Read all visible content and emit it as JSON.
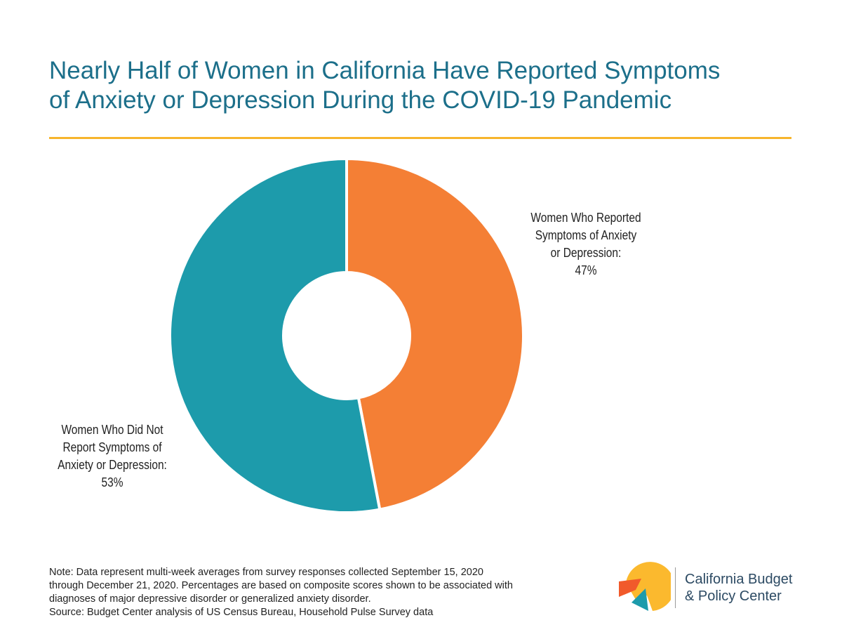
{
  "title_lines": [
    "Nearly Half of Women in California Have Reported Symptoms",
    "of Anxiety or Depression During the COVID-19 Pandemic"
  ],
  "colors": {
    "title": "#1c6f8a",
    "accent_rule": "#f7b52c",
    "reported": "#f47f35",
    "not_reported": "#1d9bab",
    "logo_yellow": "#fbb92e",
    "logo_orange": "#f15a2b",
    "logo_teal": "#1d9bab",
    "logo_text": "#2c4a63"
  },
  "chart_data": {
    "type": "pie",
    "style": "donut",
    "slices": [
      {
        "label_lines": [
          "Women Who Reported",
          "Symptoms of Anxiety",
          "or Depression:",
          "47%"
        ],
        "value": 47,
        "color": "#f47f35"
      },
      {
        "label_lines": [
          "Women Who Did Not",
          "Report Symptoms of",
          "Anxiety or Depression:",
          "53%"
        ],
        "value": 53,
        "color": "#1d9bab"
      }
    ],
    "start_angle": "12 o'clock",
    "direction": "clockwise"
  },
  "note_lines": [
    "Note: Data represent multi-week averages from survey responses collected September 15, 2020",
    "through December 21, 2020. Percentages are based on composite scores shown to be associated with",
    "diagnoses of major depressive disorder or generalized anxiety disorder.",
    "Source: Budget Center analysis of US Census Bureau, Household Pulse Survey data"
  ],
  "logo": {
    "name_lines": [
      "California Budget",
      "& Policy Center"
    ],
    "icon": "budget-center-logo-icon"
  }
}
